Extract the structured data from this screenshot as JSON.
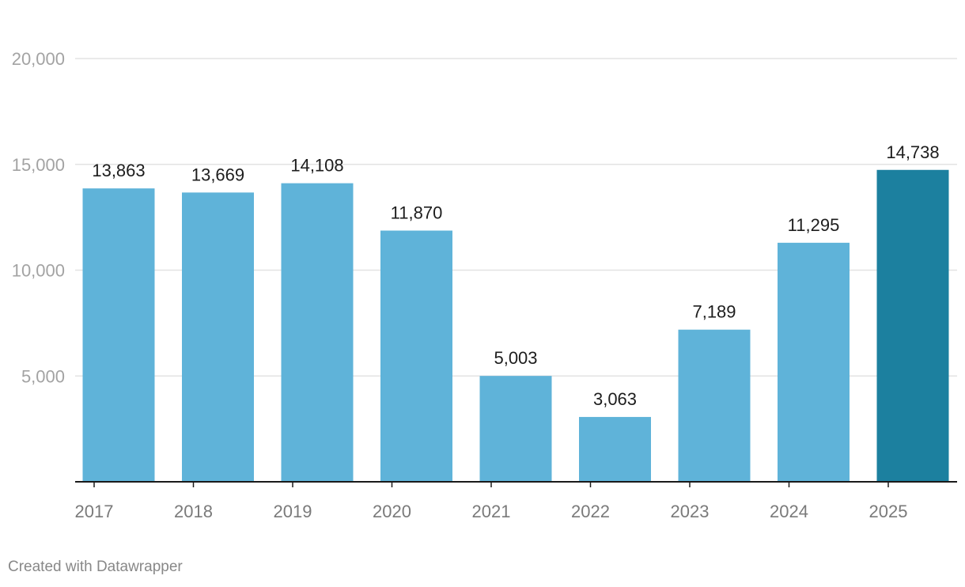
{
  "chart_data": {
    "type": "bar",
    "categories": [
      "2017",
      "2018",
      "2019",
      "2020",
      "2021",
      "2022",
      "2023",
      "2024",
      "2025"
    ],
    "values": [
      13863,
      13669,
      14108,
      11870,
      5003,
      3063,
      7189,
      11295,
      14738
    ],
    "value_labels": [
      "13,863",
      "13,669",
      "14,108",
      "11,870",
      "5,003",
      "3,063",
      "7,189",
      "11,295",
      "14,738"
    ],
    "ylim": [
      0,
      20000
    ],
    "y_ticks": [
      5000,
      10000,
      15000,
      20000
    ],
    "y_tick_labels": [
      "5,000",
      "10,000",
      "15,000",
      "20,000"
    ],
    "grid": true,
    "colors": {
      "bar": "#5fb3d9",
      "highlight_bar": "#1c809f",
      "highlight_category": "2025"
    }
  },
  "footer": {
    "credit": "Created with Datawrapper"
  }
}
